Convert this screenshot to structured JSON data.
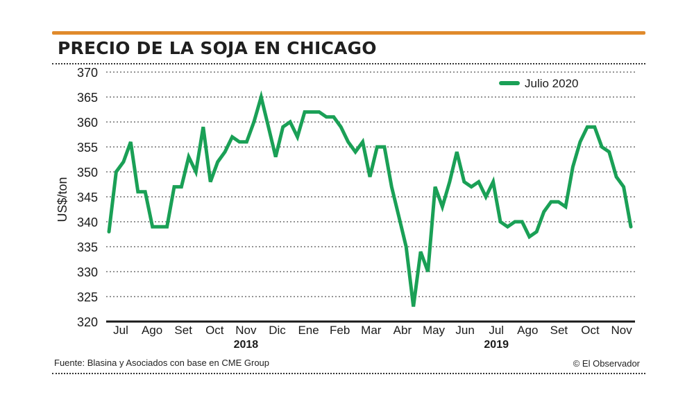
{
  "header": {
    "title": "PRECIO DE LA SOJA EN CHICAGO"
  },
  "footer": {
    "source": "Fuente: Blasina y Asociados con base en CME Group",
    "credit": "© El Observador"
  },
  "colors": {
    "accent_rule": "#e08a2c",
    "series": "#1aa056",
    "grid": "#555555",
    "text": "#1a1a1a"
  },
  "chart_data": {
    "type": "line",
    "title": "PRECIO DE LA SOJA EN CHICAGO",
    "ylabel": "US$/ton",
    "xlabel": "",
    "ylim": [
      320,
      370
    ],
    "y_ticks": [
      320,
      325,
      330,
      335,
      340,
      345,
      350,
      355,
      360,
      365,
      370
    ],
    "grid": true,
    "legend_position": "top-right",
    "month_labels": [
      "Jul",
      "Ago",
      "Set",
      "Oct",
      "Nov",
      "Dic",
      "Ene",
      "Feb",
      "Mar",
      "Abr",
      "May",
      "Jun",
      "Jul",
      "Ago",
      "Set",
      "Oct",
      "Nov"
    ],
    "year_labels": [
      {
        "label": "2018",
        "month_index": 4
      },
      {
        "label": "2019",
        "month_index": 12
      }
    ],
    "series": [
      {
        "name": "Julio 2020",
        "values": [
          338,
          350,
          352,
          356,
          346,
          346,
          339,
          339,
          339,
          347,
          347,
          353,
          350,
          359,
          348,
          352,
          354,
          357,
          356,
          356,
          360,
          365,
          359,
          353,
          359,
          360,
          357,
          362,
          362,
          362,
          361,
          361,
          359,
          356,
          354,
          356,
          349,
          355,
          355,
          347,
          341,
          335,
          323,
          334,
          330,
          347,
          343,
          348,
          354,
          348,
          347,
          348,
          345,
          348,
          340,
          339,
          340,
          340,
          337,
          338,
          342,
          344,
          344,
          343,
          351,
          356,
          359,
          359,
          355,
          354,
          349,
          347,
          339
        ]
      }
    ]
  }
}
